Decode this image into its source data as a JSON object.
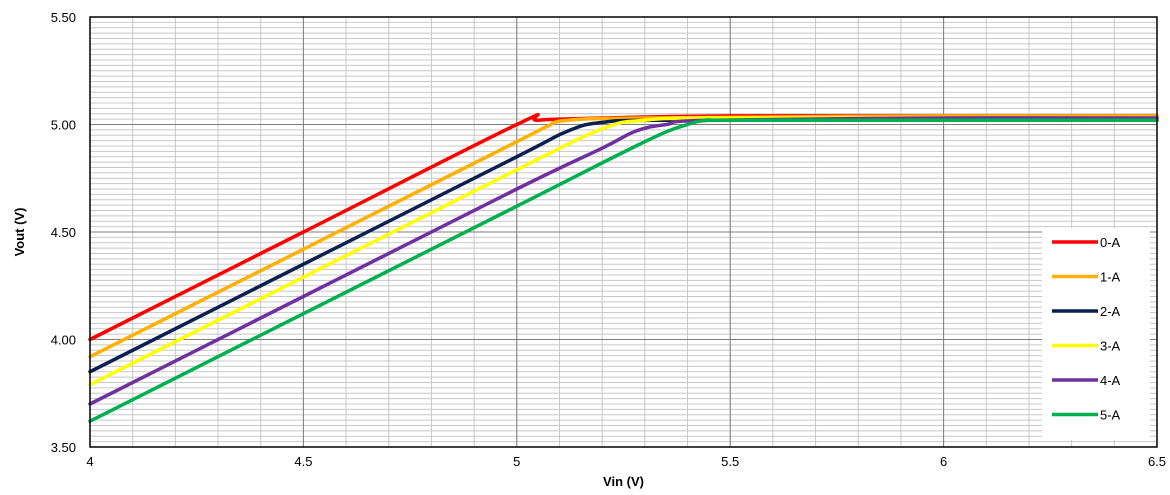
{
  "chart_data": {
    "type": "line",
    "title": "",
    "xlabel": "Vin (V)",
    "ylabel": "Vout (V)",
    "xlim": [
      4,
      6.5
    ],
    "ylim": [
      3.5,
      5.5
    ],
    "x_ticks": [
      4,
      4.5,
      5,
      5.5,
      6,
      6.5
    ],
    "x_tick_labels": [
      "4",
      "4.5",
      "5",
      "5.5",
      "6",
      "6.5"
    ],
    "y_ticks": [
      3.5,
      4.0,
      4.5,
      5.0,
      5.5
    ],
    "y_tick_labels": [
      "3.50",
      "4.00",
      "4.50",
      "5.00",
      "5.50"
    ],
    "grid": true,
    "legend_position": "bottom-right",
    "series": [
      {
        "name": "0-A",
        "color": "#ff0000",
        "x": [
          4.0,
          4.5,
          5.0,
          5.05,
          5.2,
          5.5,
          6.0,
          6.5
        ],
        "y": [
          4.0,
          4.5,
          5.0,
          5.02,
          5.03,
          5.04,
          5.04,
          5.04
        ]
      },
      {
        "name": "1-A",
        "color": "#ffb000",
        "x": [
          4.0,
          4.5,
          5.0,
          5.07,
          5.12,
          5.3,
          6.0,
          6.5
        ],
        "y": [
          3.92,
          4.42,
          4.92,
          4.99,
          5.02,
          5.03,
          5.04,
          5.04
        ]
      },
      {
        "name": "2-A",
        "color": "#0a2050",
        "x": [
          4.0,
          4.5,
          5.0,
          5.12,
          5.2,
          5.35,
          6.0,
          6.5
        ],
        "y": [
          3.85,
          4.35,
          4.85,
          4.97,
          5.01,
          5.02,
          5.02,
          5.02
        ]
      },
      {
        "name": "3-A",
        "color": "#ffff00",
        "x": [
          4.0,
          4.5,
          5.0,
          5.2,
          5.3,
          5.45,
          6.0,
          6.5
        ],
        "y": [
          3.79,
          4.29,
          4.79,
          4.98,
          5.02,
          5.03,
          5.03,
          5.03
        ]
      },
      {
        "name": "4-A",
        "color": "#7030a0",
        "x": [
          4.0,
          4.5,
          5.0,
          5.2,
          5.28,
          5.35,
          5.45,
          6.0,
          6.5
        ],
        "y": [
          3.7,
          4.2,
          4.7,
          4.89,
          4.97,
          5.0,
          5.02,
          5.03,
          5.03
        ]
      },
      {
        "name": "5-A",
        "color": "#00b050",
        "x": [
          4.0,
          4.5,
          5.0,
          5.3,
          5.4,
          5.45,
          5.5,
          6.0,
          6.5
        ],
        "y": [
          3.62,
          4.12,
          4.62,
          4.92,
          5.0,
          5.02,
          5.02,
          5.02,
          5.02
        ]
      }
    ]
  }
}
